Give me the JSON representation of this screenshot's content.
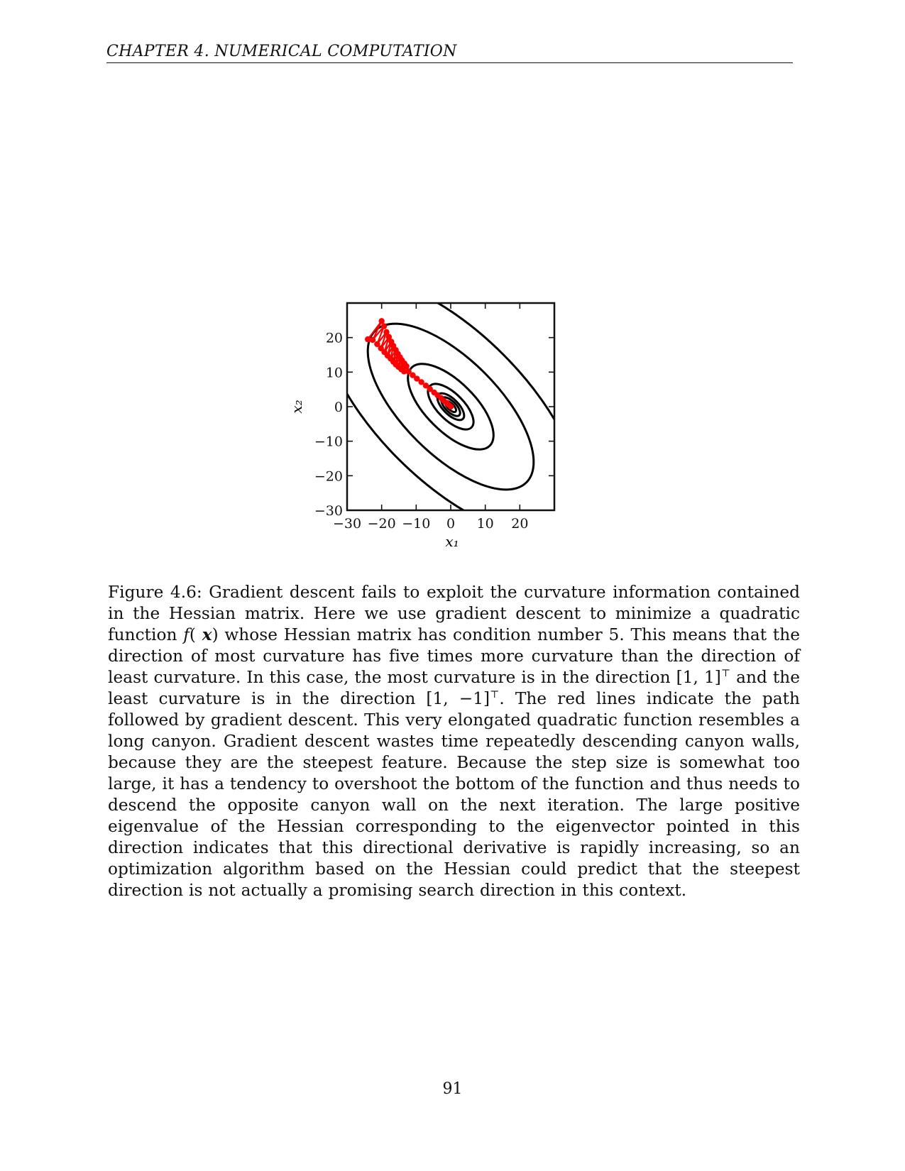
{
  "header": {
    "running_head": "CHAPTER 4.   NUMERICAL COMPUTATION"
  },
  "figure": {
    "x_axis_label": "x₁",
    "y_axis_label": "x₂",
    "x_tick_labels": [
      "−30",
      "−20",
      "−10",
      "0",
      "10",
      "20"
    ],
    "y_tick_labels": [
      "20",
      "10",
      "0",
      "−10",
      "−20",
      "−30"
    ],
    "path_color": "#ff0000",
    "contour_color": "#000000"
  },
  "chart_data": {
    "type": "line",
    "xlabel": "x₁",
    "ylabel": "x₂",
    "xlim": [
      -30,
      30
    ],
    "ylim": [
      -30,
      30
    ],
    "xticks": [
      -30,
      -20,
      -10,
      0,
      10,
      20
    ],
    "yticks": [
      -30,
      -20,
      -10,
      0,
      10,
      20
    ],
    "grid": false,
    "contours": {
      "center": [
        0,
        0
      ],
      "major_axis_direction": "[1, -1]",
      "axis_ratio": 2.24,
      "levels_semi_major": [
        2,
        3.5,
        5,
        8.5,
        16,
        31,
        48
      ]
    },
    "series": [
      {
        "x": [
          -24,
          -20,
          -22.6,
          -19.3,
          -21.3,
          -18.6,
          -20.2,
          -17.9,
          -19.2,
          -17.2,
          -18.3,
          -16.6,
          -17.4,
          -15.9,
          -16.6,
          -15.3,
          -15.9,
          -14.7,
          -15.1,
          -14.1,
          -14.3,
          -13.4,
          -13.5,
          -12.8,
          -12.2,
          -11,
          -9.8,
          -8.5,
          -7.2,
          -6,
          -4.8,
          -3.8,
          -2.8,
          -2,
          -1.2,
          -0.6,
          0
        ],
        "y": [
          19.5,
          24.8,
          19.3,
          23.3,
          18.1,
          21.6,
          16.9,
          20.2,
          15.8,
          18.8,
          14.8,
          17.6,
          13.9,
          16.4,
          13,
          15.3,
          12.2,
          14.3,
          11.5,
          13.4,
          10.8,
          12.5,
          10.2,
          11.7,
          10.2,
          9.1,
          8.1,
          7.1,
          6.1,
          5.1,
          4.1,
          3.3,
          2.5,
          1.7,
          1.1,
          0.5,
          0
        ]
      }
    ]
  },
  "caption": {
    "p1": "Figure 4.6: Gradient descent fails to exploit the curvature information contained in the Hessian matrix. Here we use gradient descent to minimize a quadratic function ",
    "f": "f",
    "open": "( ",
    "x": "x",
    "p2": ") whose Hessian matrix has condition number 5. This means that the direction of most curvature has five times more curvature than the direction of least curvature. In this case, the most curvature is in the direction [1, 1]",
    "sup": "⊤",
    "p3": " and the least curvature is in the direction [1, −1]",
    "p4": ". The red lines indicate the path followed by gradient descent. This very elongated quadratic function resembles a long canyon. Gradient descent wastes time repeatedly descending canyon walls, because they are the steepest feature. Because the step size is somewhat too large, it has a tendency to overshoot the bottom of the function and thus needs to descend the opposite canyon wall on the next iteration. The large positive eigenvalue of the Hessian corresponding to the eigenvector pointed in this direction indicates that this directional derivative is rapidly increasing, so an optimization algorithm based on the Hessian could predict that the steepest direction is not actually a promising search direction in this context."
  },
  "footer": {
    "page_number": "91"
  }
}
